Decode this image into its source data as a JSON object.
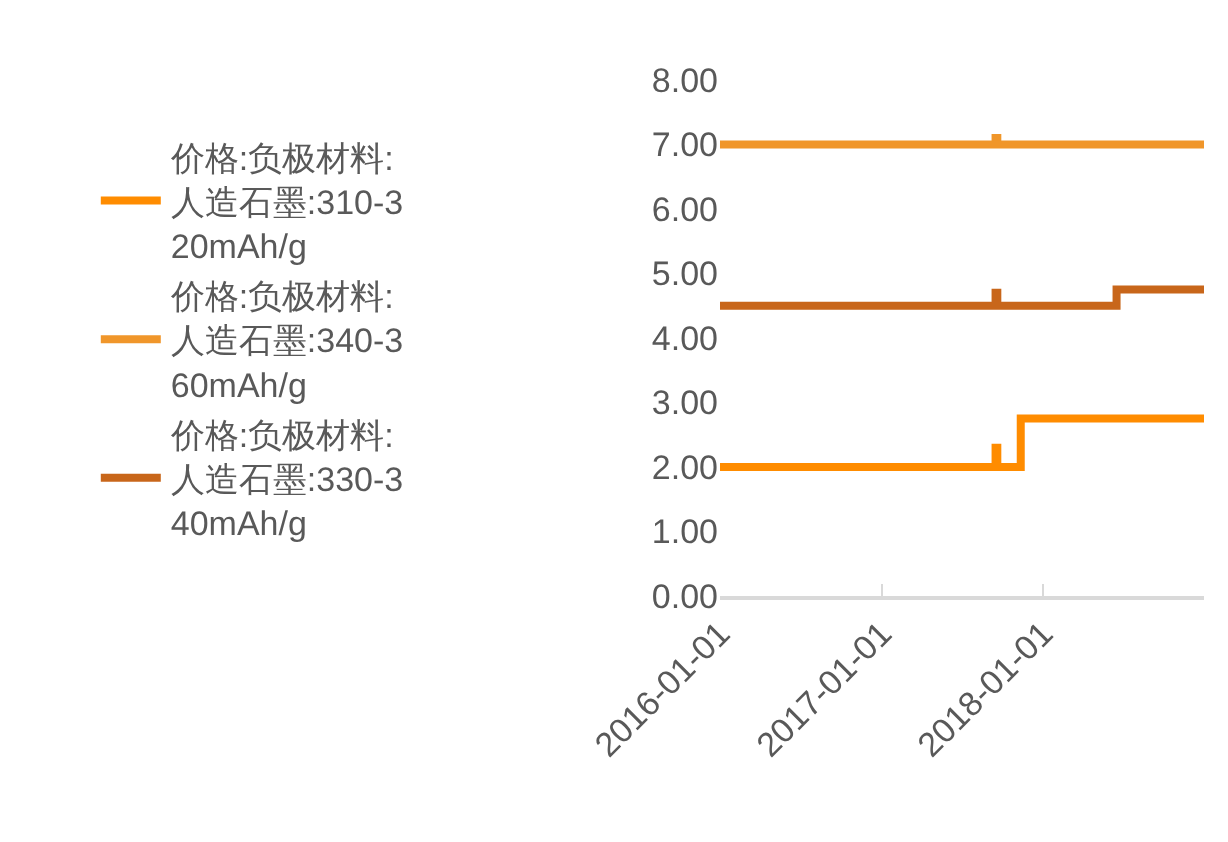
{
  "chart_data": {
    "type": "step",
    "series": [
      {
        "name": "价格:负极材料:人造石墨:310-320mAh/g",
        "color": "#ff8c00",
        "x": [
          "2016-01-01",
          "2017-09-16",
          "2017-09-20",
          "2017-11-12",
          "2019-01-01"
        ],
        "values": [
          2.0,
          2.3,
          2.0,
          2.75,
          2.75
        ]
      },
      {
        "name": "价格:负极材料:人造石墨:340-360mAh/g",
        "color": "#f0962a",
        "x": [
          "2016-01-01",
          "2017-09-16",
          "2017-09-20",
          "2019-01-01"
        ],
        "values": [
          7.0,
          7.1,
          7.0,
          7.0
        ]
      },
      {
        "name": "价格:负极材料:人造石墨:330-340mAh/g",
        "color": "#c8661a",
        "x": [
          "2016-01-01",
          "2017-09-16",
          "2017-09-20",
          "2018-06-17",
          "2019-01-01"
        ],
        "values": [
          4.5,
          4.7,
          4.5,
          4.75,
          4.75
        ]
      }
    ],
    "xlim": [
      "2016-01-01",
      "2019-01-01"
    ],
    "xticks": [
      {
        "value": "2016-01-01",
        "label": "2016-01-01"
      },
      {
        "value": "2017-01-01",
        "label": "2017-01-01"
      },
      {
        "value": "2018-01-01",
        "label": "2018-01-01"
      }
    ],
    "ylim": [
      0,
      8
    ],
    "yticks": [
      {
        "value": 0,
        "label": "0.00"
      },
      {
        "value": 1,
        "label": "1.00"
      },
      {
        "value": 2,
        "label": "2.00"
      },
      {
        "value": 3,
        "label": "3.00"
      },
      {
        "value": 4,
        "label": "4.00"
      },
      {
        "value": 5,
        "label": "5.00"
      },
      {
        "value": 6,
        "label": "6.00"
      },
      {
        "value": 7,
        "label": "7.00"
      },
      {
        "value": 8,
        "label": "8.00"
      }
    ],
    "grid": false,
    "legend": "left",
    "line_style": "solid",
    "marker": "none"
  }
}
